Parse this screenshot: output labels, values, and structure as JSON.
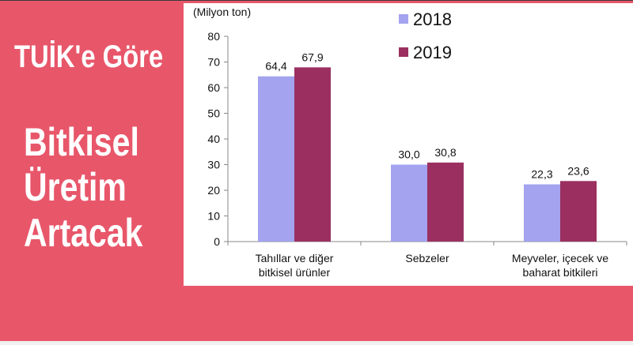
{
  "headline": {
    "line1": "TUİK'e Göre",
    "line2": "Bitkisel",
    "line3": "Üretim",
    "line4": "Artacak"
  },
  "colors": {
    "background": "#e8566a",
    "series_2018": "#a3a3ef",
    "series_2019": "#9b3060"
  },
  "chart_data": {
    "type": "bar",
    "unit_label": "(Milyon ton)",
    "categories": [
      [
        "Tahıllar ve diğer",
        "bitkisel ürünler"
      ],
      [
        "Sebzeler"
      ],
      [
        "Meyveler, içecek ve",
        "baharat bitkileri"
      ]
    ],
    "series": [
      {
        "name": "2018",
        "values": [
          64.4,
          30.0,
          22.3
        ],
        "labels": [
          "64,4",
          "30,0",
          "22,3"
        ],
        "color": "#a3a3ef"
      },
      {
        "name": "2019",
        "values": [
          67.9,
          30.8,
          23.6
        ],
        "labels": [
          "67,9",
          "30,8",
          "23,6"
        ],
        "color": "#9b3060"
      }
    ],
    "ylim": [
      0,
      80
    ],
    "yticks": [
      0,
      10,
      20,
      30,
      40,
      50,
      60,
      70,
      80
    ],
    "legend_position": "top-right",
    "grid": false
  }
}
